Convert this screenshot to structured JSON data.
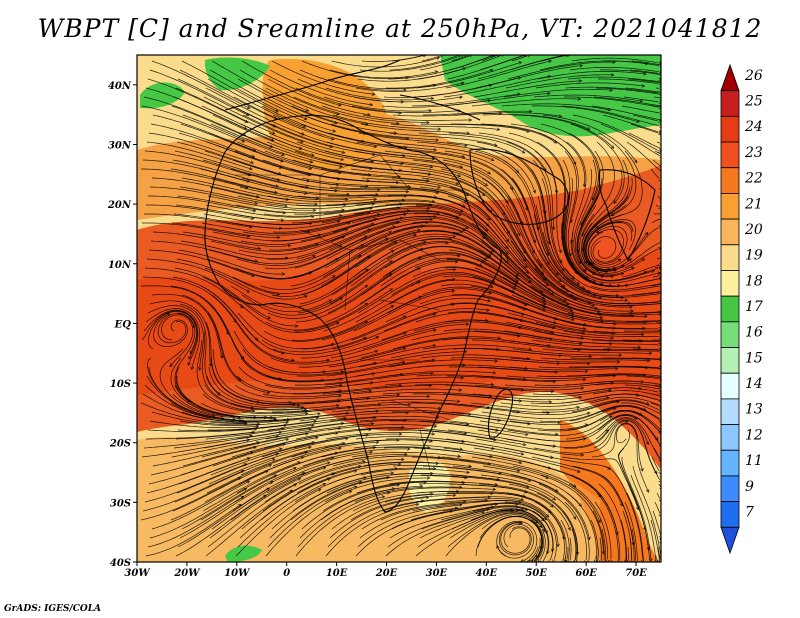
{
  "title": "WBPT [C] and Sreamline at 250hPa, VT: 2021041812",
  "credit": "GrADS: IGES/COLA",
  "map": {
    "lon_labels": [
      "30W",
      "20W",
      "10W",
      "0",
      "10E",
      "20E",
      "30E",
      "40E",
      "50E",
      "60E",
      "70E"
    ],
    "lat_labels": [
      "40N",
      "30N",
      "20N",
      "10N",
      "EQ",
      "10S",
      "20S",
      "30S",
      "40S"
    ],
    "lon_range": [
      -30,
      75
    ],
    "lat_range": [
      -40,
      45
    ]
  },
  "colorbar": {
    "labels": [
      "26",
      "25",
      "24",
      "23",
      "22",
      "21",
      "20",
      "19",
      "18",
      "17",
      "16",
      "15",
      "14",
      "13",
      "12",
      "11",
      "9",
      "7"
    ],
    "colors": [
      "#a00000",
      "#c81e1e",
      "#e63c14",
      "#f0501e",
      "#f5781e",
      "#f8a032",
      "#fab45a",
      "#fadc8c",
      "#fff0a0",
      "#46c846",
      "#78dc78",
      "#b4f0b4",
      "#e6ffff",
      "#b4dcff",
      "#8cc8ff",
      "#64b4ff",
      "#3c8cff",
      "#1e6ef0",
      "#1e50dc"
    ]
  }
}
